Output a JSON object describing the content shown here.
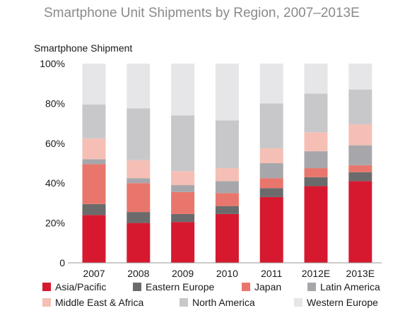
{
  "chart_data": {
    "type": "bar",
    "stacked": true,
    "title": "Smartphone Unit Shipments by Region, 2007–2013E",
    "ylabel": "Smartphone Shipment",
    "xlabel": "",
    "ylim": [
      0,
      100
    ],
    "yticks": [
      "0",
      "20%",
      "40%",
      "60%",
      "80%",
      "100%"
    ],
    "categories": [
      "2007",
      "2008",
      "2009",
      "2010",
      "2011",
      "2012E",
      "2013E"
    ],
    "series": [
      {
        "name": "Asia/Pacific",
        "color": "#d7192f",
        "values": [
          24,
          20,
          20.5,
          24.5,
          33,
          38.5,
          41
        ]
      },
      {
        "name": "Eastern Europe",
        "color": "#6b6b6b",
        "values": [
          5.5,
          5.5,
          4,
          4,
          4.5,
          4.5,
          4.5
        ]
      },
      {
        "name": "Japan",
        "color": "#e9766c",
        "values": [
          20,
          14.5,
          11,
          6.5,
          5,
          4.5,
          3.5
        ]
      },
      {
        "name": "Latin America",
        "color": "#a7a7ab",
        "values": [
          2.5,
          2.5,
          3.5,
          6,
          7.5,
          8.5,
          10
        ]
      },
      {
        "name": "Middle East & Africa",
        "color": "#f5bfb5",
        "values": [
          10.5,
          9,
          7,
          6.5,
          7.5,
          9.5,
          10.5
        ]
      },
      {
        "name": "North America",
        "color": "#c8c8cb",
        "values": [
          17,
          26,
          28,
          24,
          22.5,
          19.5,
          17.5
        ]
      },
      {
        "name": "Western Europe",
        "color": "#e6e6e8",
        "values": [
          20.5,
          22.5,
          26,
          28.5,
          20,
          15,
          13
        ]
      }
    ],
    "legend_position": "bottom",
    "grid": false
  }
}
